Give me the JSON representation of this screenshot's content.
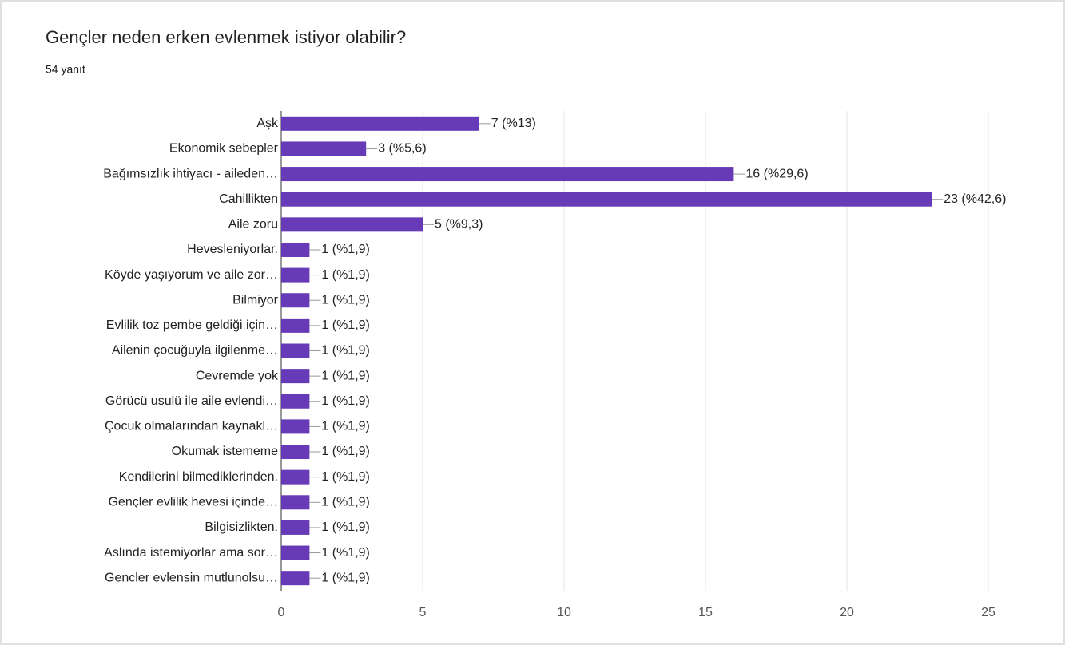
{
  "chart_data": {
    "type": "bar",
    "orientation": "horizontal",
    "title": "Gençler neden erken evlenmek istiyor olabilir?",
    "subtitle": "54 yanıt",
    "categories": [
      "Aşk",
      "Ekonomik sebepler",
      "Bağımsızlık ihtiyacı - aileden…",
      "Cahillikten",
      "Aile zoru",
      "Hevesleniyorlar.",
      "Köyde yaşıyorum ve aile zor…",
      "Bilmiyor",
      "Evlilik toz pembe geldiği için…",
      "Ailenin çocuğuyla ilgilenme…",
      "Cevremde yok",
      "Görücü usulü ile aile evlendi…",
      "Çocuk olmalarından kaynakl…",
      "Okumak istememe",
      "Kendilerini bilmediklerinden.",
      "Gençler evlilik hevesi içinde…",
      "Bilgisizlikten.",
      "Aslında istemiyorlar ama sor…",
      "Gencler evlensin mutlunolsu…"
    ],
    "values": [
      7,
      3,
      16,
      23,
      5,
      1,
      1,
      1,
      1,
      1,
      1,
      1,
      1,
      1,
      1,
      1,
      1,
      1,
      1
    ],
    "value_labels": [
      "7 (%13)",
      "3 (%5,6)",
      "16 (%29,6)",
      "23 (%42,6)",
      "5 (%9,3)",
      "1 (%1,9)",
      "1 (%1,9)",
      "1 (%1,9)",
      "1 (%1,9)",
      "1 (%1,9)",
      "1 (%1,9)",
      "1 (%1,9)",
      "1 (%1,9)",
      "1 (%1,9)",
      "1 (%1,9)",
      "1 (%1,9)",
      "1 (%1,9)",
      "1 (%1,9)",
      "1 (%1,9)"
    ],
    "color": "#673ab7",
    "xlim": [
      0,
      25
    ],
    "xticks": [
      0,
      5,
      10,
      15,
      20,
      25
    ],
    "grid": true
  }
}
